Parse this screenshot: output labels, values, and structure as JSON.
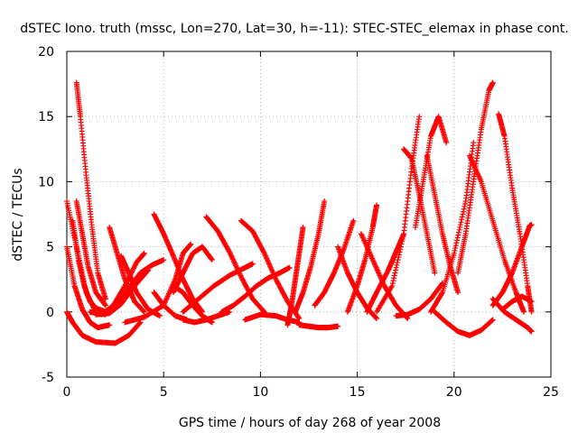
{
  "chart_data": {
    "type": "scatter",
    "title": "dSTEC Iono. truth (mssc, Lon=270, Lat=30, h=-11): STEC-STEC_elemax in phase cont.",
    "xlabel": "GPS time / hours of day 268 of year 2008",
    "ylabel": "dSTEC  / TECUs",
    "xlim": [
      0,
      25
    ],
    "ylim": [
      -5,
      20
    ],
    "xticks": [
      "0",
      "5",
      "10",
      "15",
      "20",
      "25"
    ],
    "yticks": [
      "-5",
      "0",
      "5",
      "10",
      "15",
      "20"
    ],
    "grid": true,
    "marker": "+",
    "color": "#ff0000",
    "series": [
      {
        "x": [
          0.0,
          0.5,
          1.0,
          1.5,
          2.0
        ],
        "y": [
          8.5,
          5.0,
          1.5,
          0.0,
          -0.2
        ]
      },
      {
        "x": [
          0.3,
          0.6,
          0.9,
          1.2,
          1.5,
          2.0
        ],
        "y": [
          7.0,
          4.0,
          2.0,
          0.8,
          0.3,
          0.0
        ]
      },
      {
        "x": [
          0.0,
          0.4,
          0.8,
          1.2,
          1.6,
          2.2
        ],
        "y": [
          5.0,
          2.0,
          0.2,
          -0.8,
          -1.2,
          -1.0
        ]
      },
      {
        "x": [
          0.0,
          0.3,
          0.8,
          1.5,
          2.5,
          3.2,
          3.8
        ],
        "y": [
          0.0,
          -0.8,
          -1.8,
          -2.3,
          -2.4,
          -1.8,
          -0.8
        ]
      },
      {
        "x": [
          0.5,
          0.7,
          1.0,
          1.3,
          1.6,
          2.0
        ],
        "y": [
          17.6,
          15.0,
          10.5,
          6.5,
          3.0,
          1.0
        ]
      },
      {
        "x": [
          0.5,
          0.8,
          1.1,
          1.5,
          2.0
        ],
        "y": [
          8.5,
          6.0,
          3.5,
          1.5,
          0.5
        ]
      },
      {
        "x": [
          1.2,
          1.8,
          2.4,
          3.0,
          3.6,
          4.0
        ],
        "y": [
          0.0,
          -0.2,
          0.5,
          2.0,
          3.8,
          4.5
        ]
      },
      {
        "x": [
          1.5,
          2.2,
          2.8,
          3.5,
          4.2
        ],
        "y": [
          -0.2,
          -0.1,
          0.6,
          2.0,
          3.2
        ]
      },
      {
        "x": [
          2.2,
          2.6,
          3.0,
          3.5,
          4.0
        ],
        "y": [
          6.5,
          4.5,
          2.5,
          0.8,
          0.0
        ]
      },
      {
        "x": [
          2.8,
          3.2,
          3.6,
          4.2,
          4.8
        ],
        "y": [
          4.3,
          3.0,
          1.5,
          0.2,
          -0.3
        ]
      },
      {
        "x": [
          2.0,
          2.6,
          3.2,
          3.8,
          4.4,
          5.0
        ],
        "y": [
          0.0,
          0.5,
          1.8,
          3.0,
          3.6,
          4.0
        ]
      },
      {
        "x": [
          4.5,
          5.0,
          5.5,
          6.0,
          6.5,
          7.0
        ],
        "y": [
          7.5,
          6.0,
          4.3,
          2.5,
          1.0,
          0.0
        ]
      },
      {
        "x": [
          4.5,
          5.0,
          5.6,
          6.2
        ],
        "y": [
          1.5,
          0.5,
          -0.3,
          -0.6
        ]
      },
      {
        "x": [
          3.0,
          4.0,
          5.0,
          5.6,
          6.0,
          6.4
        ],
        "y": [
          -0.8,
          -0.4,
          0.5,
          2.5,
          4.5,
          5.2
        ]
      },
      {
        "x": [
          5.5,
          6.0,
          6.5,
          7.0,
          7.5
        ],
        "y": [
          1.5,
          3.0,
          4.5,
          5.0,
          4.0
        ]
      },
      {
        "x": [
          5.5,
          6.0,
          6.5,
          7.0,
          7.5
        ],
        "y": [
          2.0,
          1.5,
          0.5,
          -0.3,
          -0.8
        ]
      },
      {
        "x": [
          7.2,
          7.8,
          8.4,
          9.0,
          9.6,
          10.2
        ],
        "y": [
          7.3,
          6.2,
          4.6,
          2.7,
          1.0,
          0.0
        ]
      },
      {
        "x": [
          6.0,
          6.8,
          7.6,
          8.4,
          9.2,
          9.6
        ],
        "y": [
          0.0,
          1.0,
          2.0,
          2.8,
          3.4,
          3.7
        ]
      },
      {
        "x": [
          6.0,
          6.6,
          7.2,
          7.8,
          8.4
        ],
        "y": [
          -0.6,
          -0.8,
          -0.6,
          -0.3,
          0.0
        ]
      },
      {
        "x": [
          8.0,
          8.6,
          9.2,
          9.8,
          10.4,
          11.0,
          11.5
        ],
        "y": [
          0.0,
          0.5,
          1.2,
          2.0,
          2.6,
          3.0,
          3.4
        ]
      },
      {
        "x": [
          9.2,
          10.0,
          10.8,
          11.4,
          12.0
        ],
        "y": [
          -0.6,
          -0.2,
          -0.3,
          -0.6,
          -0.8
        ]
      },
      {
        "x": [
          9.0,
          9.6,
          10.2,
          10.8,
          11.4,
          12.0
        ],
        "y": [
          7.0,
          6.2,
          4.5,
          2.5,
          0.8,
          -0.5
        ]
      },
      {
        "x": [
          11.4,
          11.6,
          11.8,
          12.0,
          12.2
        ],
        "y": [
          -1.0,
          0.5,
          2.5,
          4.5,
          6.5
        ]
      },
      {
        "x": [
          11.8,
          12.2,
          12.6,
          13.0,
          13.3
        ],
        "y": [
          0.0,
          1.5,
          3.5,
          6.0,
          8.5
        ]
      },
      {
        "x": [
          12.0,
          12.5,
          13.0,
          13.5,
          14.0
        ],
        "y": [
          -1.0,
          -1.1,
          -1.2,
          -1.2,
          -1.1
        ]
      },
      {
        "x": [
          12.8,
          13.3,
          13.8,
          14.3,
          14.8
        ],
        "y": [
          0.5,
          1.5,
          3.0,
          4.8,
          7.0
        ]
      },
      {
        "x": [
          14.0,
          14.5,
          15.0,
          15.5,
          16.0
        ],
        "y": [
          5.0,
          3.0,
          1.5,
          0.3,
          -0.5
        ]
      },
      {
        "x": [
          14.5,
          15.0,
          15.4,
          15.8,
          16.0
        ],
        "y": [
          0.0,
          2.0,
          4.0,
          6.5,
          8.2
        ]
      },
      {
        "x": [
          15.2,
          15.8,
          16.4,
          17.0,
          17.6
        ],
        "y": [
          6.0,
          4.0,
          2.0,
          0.5,
          -0.5
        ]
      },
      {
        "x": [
          15.5,
          16.0,
          16.6,
          17.0,
          17.4
        ],
        "y": [
          0.0,
          1.5,
          3.2,
          4.6,
          6.0
        ]
      },
      {
        "x": [
          16.0,
          16.8,
          17.4,
          17.8,
          18.2
        ],
        "y": [
          0.0,
          2.0,
          6.0,
          11.0,
          15.0
        ]
      },
      {
        "x": [
          17.4,
          17.8,
          18.2,
          18.6,
          19.0
        ],
        "y": [
          12.5,
          11.8,
          9.0,
          6.0,
          3.0
        ]
      },
      {
        "x": [
          17.0,
          17.6,
          18.2,
          18.8,
          19.4
        ],
        "y": [
          -0.3,
          -0.2,
          0.2,
          1.0,
          2.2
        ]
      },
      {
        "x": [
          18.0,
          18.4,
          18.8,
          19.2,
          19.6
        ],
        "y": [
          6.5,
          10.0,
          13.5,
          15.0,
          13.0
        ]
      },
      {
        "x": [
          18.6,
          19.0,
          19.4,
          19.8,
          20.2
        ],
        "y": [
          12.0,
          9.0,
          6.0,
          3.5,
          1.5
        ]
      },
      {
        "x": [
          18.8,
          19.4,
          20.0,
          20.6,
          21.0
        ],
        "y": [
          0.0,
          1.5,
          4.5,
          8.5,
          13.0
        ]
      },
      {
        "x": [
          19.0,
          19.6,
          20.2,
          20.8,
          21.4,
          22.0
        ],
        "y": [
          0.0,
          -0.8,
          -1.5,
          -1.8,
          -1.4,
          -0.6
        ]
      },
      {
        "x": [
          20.2,
          20.6,
          21.0,
          21.4,
          21.8,
          22.0
        ],
        "y": [
          3.0,
          6.0,
          10.0,
          14.0,
          17.0,
          17.6
        ]
      },
      {
        "x": [
          20.8,
          21.4,
          22.0,
          22.6,
          23.2,
          23.6
        ],
        "y": [
          12.0,
          10.0,
          7.0,
          4.0,
          1.5,
          0.0
        ]
      },
      {
        "x": [
          22.3,
          22.6,
          23.0,
          23.4,
          23.8,
          24.0
        ],
        "y": [
          15.2,
          13.5,
          9.5,
          6.0,
          2.0,
          0.0
        ]
      },
      {
        "x": [
          22.0,
          22.5,
          23.0,
          23.5,
          23.9,
          24.0
        ],
        "y": [
          0.5,
          1.5,
          3.0,
          5.0,
          6.6,
          6.7
        ]
      },
      {
        "x": [
          22.5,
          23.0,
          23.5,
          24.0
        ],
        "y": [
          0.2,
          0.8,
          1.2,
          0.8
        ]
      },
      {
        "x": [
          22.0,
          22.6,
          23.2,
          23.8,
          24.0
        ],
        "y": [
          1.0,
          0.0,
          -0.6,
          -1.2,
          -1.5
        ]
      }
    ]
  }
}
